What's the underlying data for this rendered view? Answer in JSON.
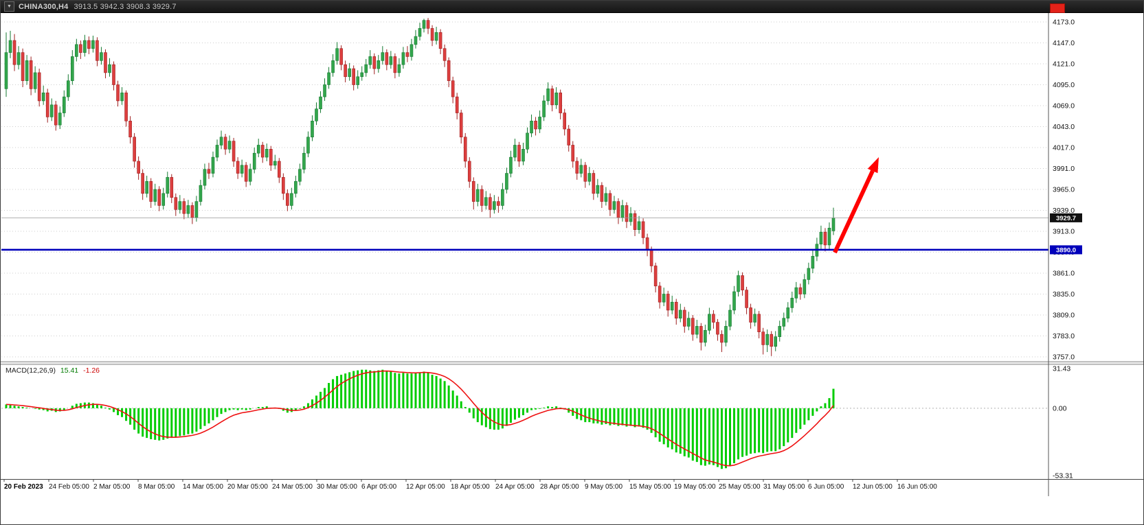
{
  "toolbar": {
    "symbol_period": "CHINA300,H4",
    "ohlc_text": "3913.5 3942.3 3908.3 3929.7"
  },
  "chart_data": {
    "type": "candlestick",
    "symbol": "CHINA300",
    "timeframe": "H4",
    "quote": {
      "open": 3913.5,
      "high": 3942.3,
      "low": 3908.3,
      "close": 3929.7
    },
    "price_axis": {
      "ticks": [
        4173.0,
        4147.0,
        4121.0,
        4095.0,
        4069.0,
        4043.0,
        4017.0,
        3991.0,
        3965.0,
        3939.0,
        3913.0,
        3887.0,
        3861.0,
        3835.0,
        3809.0,
        3783.0,
        3757.0
      ],
      "range": [
        3757.0,
        4173.0
      ],
      "current_price": 3929.7,
      "hline_level": 3890.0
    },
    "time_axis": [
      "20 Feb 2023",
      "24 Feb 05:00",
      "2 Mar 05:00",
      "8 Mar 05:00",
      "14 Mar 05:00",
      "20 Mar 05:00",
      "24 Mar 05:00",
      "30 Mar 05:00",
      "6 Apr 05:00",
      "12 Apr 05:00",
      "18 Apr 05:00",
      "24 Apr 05:00",
      "28 Apr 05:00",
      "9 May 05:00",
      "15 May 05:00",
      "19 May 05:00",
      "25 May 05:00",
      "31 May 05:00",
      "6 Jun 05:00",
      "12 Jun 05:00",
      "16 Jun 05:00"
    ],
    "candles": [
      [
        4090,
        4160,
        4080,
        4135
      ],
      [
        4135,
        4162,
        4128,
        4150
      ],
      [
        4150,
        4158,
        4112,
        4120
      ],
      [
        4120,
        4143,
        4114,
        4135
      ],
      [
        4135,
        4140,
        4092,
        4100
      ],
      [
        4100,
        4132,
        4095,
        4125
      ],
      [
        4125,
        4130,
        4082,
        4090
      ],
      [
        4090,
        4118,
        4085,
        4110
      ],
      [
        4110,
        4115,
        4068,
        4075
      ],
      [
        4075,
        4094,
        4070,
        4085
      ],
      [
        4085,
        4090,
        4048,
        4055
      ],
      [
        4055,
        4078,
        4050,
        4070
      ],
      [
        4070,
        4075,
        4038,
        4045
      ],
      [
        4045,
        4068,
        4040,
        4060
      ],
      [
        4060,
        4088,
        4055,
        4080
      ],
      [
        4080,
        4108,
        4075,
        4100
      ],
      [
        4100,
        4138,
        4095,
        4130
      ],
      [
        4130,
        4152,
        4124,
        4145
      ],
      [
        4145,
        4150,
        4127,
        4135
      ],
      [
        4135,
        4157,
        4130,
        4150
      ],
      [
        4150,
        4155,
        4133,
        4140
      ],
      [
        4140,
        4156,
        4135,
        4150
      ],
      [
        4150,
        4154,
        4118,
        4125
      ],
      [
        4125,
        4142,
        4120,
        4135
      ],
      [
        4135,
        4139,
        4103,
        4110
      ],
      [
        4110,
        4128,
        4105,
        4120
      ],
      [
        4120,
        4124,
        4088,
        4095
      ],
      [
        4095,
        4100,
        4068,
        4075
      ],
      [
        4075,
        4092,
        4070,
        4085
      ],
      [
        4085,
        4088,
        4043,
        4050
      ],
      [
        4050,
        4056,
        4022,
        4030
      ],
      [
        4030,
        4035,
        3992,
        4000
      ],
      [
        4000,
        4006,
        3977,
        3985
      ],
      [
        3985,
        3990,
        3952,
        3960
      ],
      [
        3960,
        3982,
        3955,
        3975
      ],
      [
        3975,
        3979,
        3942,
        3950
      ],
      [
        3950,
        3972,
        3945,
        3965
      ],
      [
        3965,
        3969,
        3938,
        3945
      ],
      [
        3945,
        3967,
        3940,
        3960
      ],
      [
        3960,
        3987,
        3955,
        3980
      ],
      [
        3980,
        3984,
        3948,
        3955
      ],
      [
        3955,
        3960,
        3932,
        3940
      ],
      [
        3940,
        3958,
        3935,
        3950
      ],
      [
        3950,
        3954,
        3928,
        3935
      ],
      [
        3935,
        3952,
        3930,
        3945
      ],
      [
        3945,
        3949,
        3922,
        3930
      ],
      [
        3930,
        3957,
        3925,
        3950
      ],
      [
        3950,
        3977,
        3945,
        3970
      ],
      [
        3970,
        3997,
        3965,
        3990
      ],
      [
        3990,
        3998,
        3978,
        3985
      ],
      [
        3985,
        4012,
        3980,
        4005
      ],
      [
        4005,
        4027,
        4000,
        4020
      ],
      [
        4020,
        4038,
        4015,
        4030
      ],
      [
        4030,
        4034,
        4008,
        4015
      ],
      [
        4015,
        4032,
        4010,
        4025
      ],
      [
        4025,
        4029,
        3993,
        4000
      ],
      [
        4000,
        4005,
        3978,
        3985
      ],
      [
        3985,
        4002,
        3980,
        3995
      ],
      [
        3995,
        3999,
        3968,
        3975
      ],
      [
        3975,
        3997,
        3970,
        3990
      ],
      [
        3990,
        4017,
        3985,
        4010
      ],
      [
        4010,
        4028,
        4005,
        4020
      ],
      [
        4020,
        4024,
        3998,
        4005
      ],
      [
        4005,
        4022,
        4000,
        4015
      ],
      [
        4015,
        4019,
        3988,
        3995
      ],
      [
        3995,
        4008,
        3990,
        4000
      ],
      [
        4000,
        4004,
        3973,
        3980
      ],
      [
        3980,
        3985,
        3952,
        3960
      ],
      [
        3960,
        3965,
        3938,
        3945
      ],
      [
        3945,
        3967,
        3940,
        3960
      ],
      [
        3960,
        3982,
        3955,
        3975
      ],
      [
        3975,
        3997,
        3970,
        3990
      ],
      [
        3990,
        4018,
        3985,
        4010
      ],
      [
        4010,
        4037,
        4005,
        4030
      ],
      [
        4030,
        4057,
        4025,
        4050
      ],
      [
        4050,
        4073,
        4045,
        4065
      ],
      [
        4065,
        4087,
        4060,
        4080
      ],
      [
        4080,
        4103,
        4075,
        4095
      ],
      [
        4095,
        4117,
        4090,
        4110
      ],
      [
        4110,
        4133,
        4105,
        4125
      ],
      [
        4125,
        4148,
        4120,
        4140
      ],
      [
        4140,
        4144,
        4113,
        4120
      ],
      [
        4120,
        4125,
        4098,
        4105
      ],
      [
        4105,
        4122,
        4100,
        4115
      ],
      [
        4115,
        4119,
        4088,
        4095
      ],
      [
        4095,
        4113,
        4090,
        4105
      ],
      [
        4105,
        4118,
        4100,
        4110
      ],
      [
        4110,
        4127,
        4105,
        4120
      ],
      [
        4120,
        4138,
        4115,
        4130
      ],
      [
        4130,
        4134,
        4108,
        4115
      ],
      [
        4115,
        4132,
        4110,
        4125
      ],
      [
        4125,
        4143,
        4120,
        4135
      ],
      [
        4135,
        4139,
        4113,
        4120
      ],
      [
        4120,
        4137,
        4115,
        4130
      ],
      [
        4130,
        4134,
        4103,
        4110
      ],
      [
        4110,
        4128,
        4105,
        4120
      ],
      [
        4120,
        4142,
        4115,
        4135
      ],
      [
        4135,
        4143,
        4123,
        4130
      ],
      [
        4130,
        4152,
        4125,
        4145
      ],
      [
        4145,
        4163,
        4140,
        4155
      ],
      [
        4155,
        4172,
        4150,
        4165
      ],
      [
        4165,
        4177,
        4160,
        4175
      ],
      [
        4175,
        4178,
        4158,
        4165
      ],
      [
        4165,
        4169,
        4143,
        4150
      ],
      [
        4150,
        4167,
        4145,
        4160
      ],
      [
        4160,
        4164,
        4133,
        4140
      ],
      [
        4140,
        4145,
        4117,
        4125
      ],
      [
        4125,
        4129,
        4092,
        4100
      ],
      [
        4100,
        4105,
        4072,
        4080
      ],
      [
        4080,
        4085,
        4052,
        4060
      ],
      [
        4060,
        4064,
        4022,
        4030
      ],
      [
        4030,
        4035,
        3992,
        4000
      ],
      [
        4000,
        4005,
        3967,
        3975
      ],
      [
        3975,
        3980,
        3940,
        3950
      ],
      [
        3950,
        3972,
        3944,
        3965
      ],
      [
        3965,
        3970,
        3937,
        3945
      ],
      [
        3945,
        3963,
        3940,
        3955
      ],
      [
        3955,
        3960,
        3930,
        3940
      ],
      [
        3940,
        3958,
        3935,
        3950
      ],
      [
        3950,
        3956,
        3936,
        3945
      ],
      [
        3945,
        3973,
        3940,
        3965
      ],
      [
        3965,
        3992,
        3960,
        3985
      ],
      [
        3985,
        4013,
        3980,
        4005
      ],
      [
        4005,
        4028,
        4000,
        4020
      ],
      [
        4020,
        4024,
        3993,
        4000
      ],
      [
        4000,
        4023,
        3995,
        4015
      ],
      [
        4015,
        4042,
        4010,
        4035
      ],
      [
        4035,
        4058,
        4030,
        4050
      ],
      [
        4050,
        4055,
        4032,
        4040
      ],
      [
        4040,
        4063,
        4035,
        4055
      ],
      [
        4055,
        4082,
        4050,
        4075
      ],
      [
        4075,
        4098,
        4070,
        4090
      ],
      [
        4090,
        4094,
        4062,
        4070
      ],
      [
        4070,
        4092,
        4065,
        4085
      ],
      [
        4085,
        4089,
        4052,
        4060
      ],
      [
        4060,
        4065,
        4032,
        4040
      ],
      [
        4040,
        4045,
        4012,
        4020
      ],
      [
        4020,
        4025,
        3992,
        4000
      ],
      [
        4000,
        4005,
        3977,
        3985
      ],
      [
        3985,
        4003,
        3980,
        3995
      ],
      [
        3995,
        3999,
        3967,
        3975
      ],
      [
        3975,
        3993,
        3970,
        3985
      ],
      [
        3985,
        3989,
        3952,
        3960
      ],
      [
        3960,
        3978,
        3955,
        3970
      ],
      [
        3970,
        3974,
        3942,
        3950
      ],
      [
        3950,
        3968,
        3945,
        3960
      ],
      [
        3960,
        3964,
        3932,
        3940
      ],
      [
        3940,
        3957,
        3935,
        3950
      ],
      [
        3950,
        3954,
        3922,
        3930
      ],
      [
        3930,
        3952,
        3925,
        3945
      ],
      [
        3945,
        3949,
        3917,
        3925
      ],
      [
        3925,
        3943,
        3920,
        3935
      ],
      [
        3935,
        3939,
        3907,
        3915
      ],
      [
        3915,
        3932,
        3910,
        3925
      ],
      [
        3925,
        3929,
        3897,
        3905
      ],
      [
        3905,
        3910,
        3882,
        3890
      ],
      [
        3890,
        3894,
        3862,
        3870
      ],
      [
        3870,
        3874,
        3837,
        3845
      ],
      [
        3845,
        3850,
        3817,
        3825
      ],
      [
        3825,
        3843,
        3820,
        3835
      ],
      [
        3835,
        3839,
        3807,
        3815
      ],
      [
        3815,
        3833,
        3810,
        3825
      ],
      [
        3825,
        3829,
        3797,
        3805
      ],
      [
        3805,
        3823,
        3800,
        3815
      ],
      [
        3815,
        3819,
        3787,
        3795
      ],
      [
        3795,
        3813,
        3790,
        3805
      ],
      [
        3805,
        3809,
        3777,
        3785
      ],
      [
        3785,
        3803,
        3780,
        3795
      ],
      [
        3795,
        3799,
        3765,
        3775
      ],
      [
        3775,
        3797,
        3770,
        3790
      ],
      [
        3790,
        3818,
        3785,
        3810
      ],
      [
        3810,
        3815,
        3792,
        3800
      ],
      [
        3800,
        3804,
        3777,
        3785
      ],
      [
        3785,
        3790,
        3763,
        3775
      ],
      [
        3775,
        3802,
        3770,
        3795
      ],
      [
        3795,
        3822,
        3790,
        3815
      ],
      [
        3815,
        3845,
        3810,
        3838
      ],
      [
        3838,
        3864,
        3832,
        3858
      ],
      [
        3858,
        3862,
        3833,
        3840
      ],
      [
        3840,
        3844,
        3810,
        3818
      ],
      [
        3818,
        3823,
        3792,
        3800
      ],
      [
        3800,
        3817,
        3795,
        3810
      ],
      [
        3810,
        3814,
        3780,
        3788
      ],
      [
        3788,
        3793,
        3760,
        3772
      ],
      [
        3772,
        3791,
        3763,
        3785
      ],
      [
        3785,
        3789,
        3758,
        3770
      ],
      [
        3770,
        3789,
        3764,
        3782
      ],
      [
        3782,
        3802,
        3776,
        3795
      ],
      [
        3795,
        3812,
        3790,
        3805
      ],
      [
        3805,
        3825,
        3800,
        3818
      ],
      [
        3818,
        3838,
        3812,
        3830
      ],
      [
        3830,
        3850,
        3824,
        3843
      ],
      [
        3843,
        3848,
        3828,
        3835
      ],
      [
        3835,
        3860,
        3830,
        3853
      ],
      [
        3853,
        3874,
        3847,
        3867
      ],
      [
        3867,
        3890,
        3861,
        3882
      ],
      [
        3882,
        3905,
        3876,
        3897
      ],
      [
        3897,
        3920,
        3891,
        3912
      ],
      [
        3912,
        3917,
        3888,
        3896
      ],
      [
        3896,
        3924,
        3890,
        3917
      ],
      [
        3913.5,
        3942.3,
        3908.3,
        3929.7
      ]
    ],
    "macd": {
      "label": "MACD(12,26,9)",
      "value_text": "15.41",
      "signal_text": "-1.26",
      "axis_ticks": [
        31.43,
        0.0,
        -53.31
      ],
      "signal_alpha": 0.25,
      "signal_initial": 3,
      "histogram": [
        3,
        2.5,
        2,
        1.5,
        1,
        0.5,
        0,
        -0.5,
        -1,
        -1.5,
        -2.5,
        -2,
        -3,
        -2.5,
        -1.5,
        0,
        2,
        3.5,
        4,
        4.5,
        4.5,
        4,
        3,
        2,
        0.5,
        -1,
        -3,
        -5.5,
        -7,
        -10,
        -13,
        -17,
        -20,
        -22.5,
        -23.5,
        -24.5,
        -25,
        -25.5,
        -25,
        -24,
        -23.5,
        -23,
        -22,
        -21.5,
        -20.5,
        -20,
        -18.5,
        -16.5,
        -14,
        -12,
        -9.5,
        -7,
        -4.5,
        -3,
        -1.5,
        -1,
        -1.5,
        -1,
        -1.5,
        -1,
        0,
        1,
        1,
        1.5,
        0.5,
        0.5,
        -0.5,
        -2,
        -3.5,
        -3,
        -2,
        -0.5,
        1.5,
        4,
        7,
        10,
        13,
        16,
        20,
        23,
        25.5,
        26.5,
        27.5,
        28.5,
        29.5,
        30,
        30.5,
        30.5,
        30,
        29.5,
        30,
        30.5,
        29.5,
        29,
        28,
        27.5,
        28,
        27.5,
        27.5,
        28,
        28.5,
        29,
        28,
        26.5,
        25.5,
        23.5,
        21.5,
        18,
        14,
        10,
        5.5,
        1,
        -3.5,
        -8,
        -11,
        -13.5,
        -15,
        -16.5,
        -17,
        -17,
        -16,
        -14,
        -11.5,
        -9,
        -7.5,
        -5.5,
        -3.5,
        -1.5,
        -1,
        -0.5,
        0.5,
        1.5,
        1,
        1.5,
        0.5,
        -1,
        -3.5,
        -6,
        -8.5,
        -9.5,
        -11,
        -11,
        -12,
        -12,
        -13,
        -12.5,
        -13.5,
        -13,
        -14,
        -13.5,
        -14.5,
        -14,
        -15,
        -14.5,
        -15.5,
        -17,
        -19.5,
        -23,
        -26.5,
        -28.5,
        -31,
        -32.5,
        -35,
        -36,
        -38,
        -39,
        -41.5,
        -42.5,
        -45,
        -45.5,
        -44.5,
        -45,
        -46.5,
        -48,
        -47.5,
        -46,
        -43.5,
        -40.5,
        -38.5,
        -37.5,
        -36,
        -35.5,
        -35,
        -35.5,
        -34.5,
        -34,
        -34,
        -32.5,
        -30,
        -27,
        -23.5,
        -19.5,
        -16.5,
        -13,
        -9.5,
        -6,
        -2.5,
        1.5,
        4,
        8,
        15.41
      ]
    },
    "annotations": {
      "arrow_direction": "up-right"
    },
    "colors": {
      "bull": "#33a64c",
      "bull_border": "#157a31",
      "bear": "#dd3f3f",
      "bear_border": "#9e1f1f",
      "grid": "#cccccc",
      "hline": "#0000bb",
      "macd": "#00cc00",
      "signal": "#ee1111",
      "arrow": "#ff0000",
      "badge_current_bg": "#111111"
    }
  }
}
